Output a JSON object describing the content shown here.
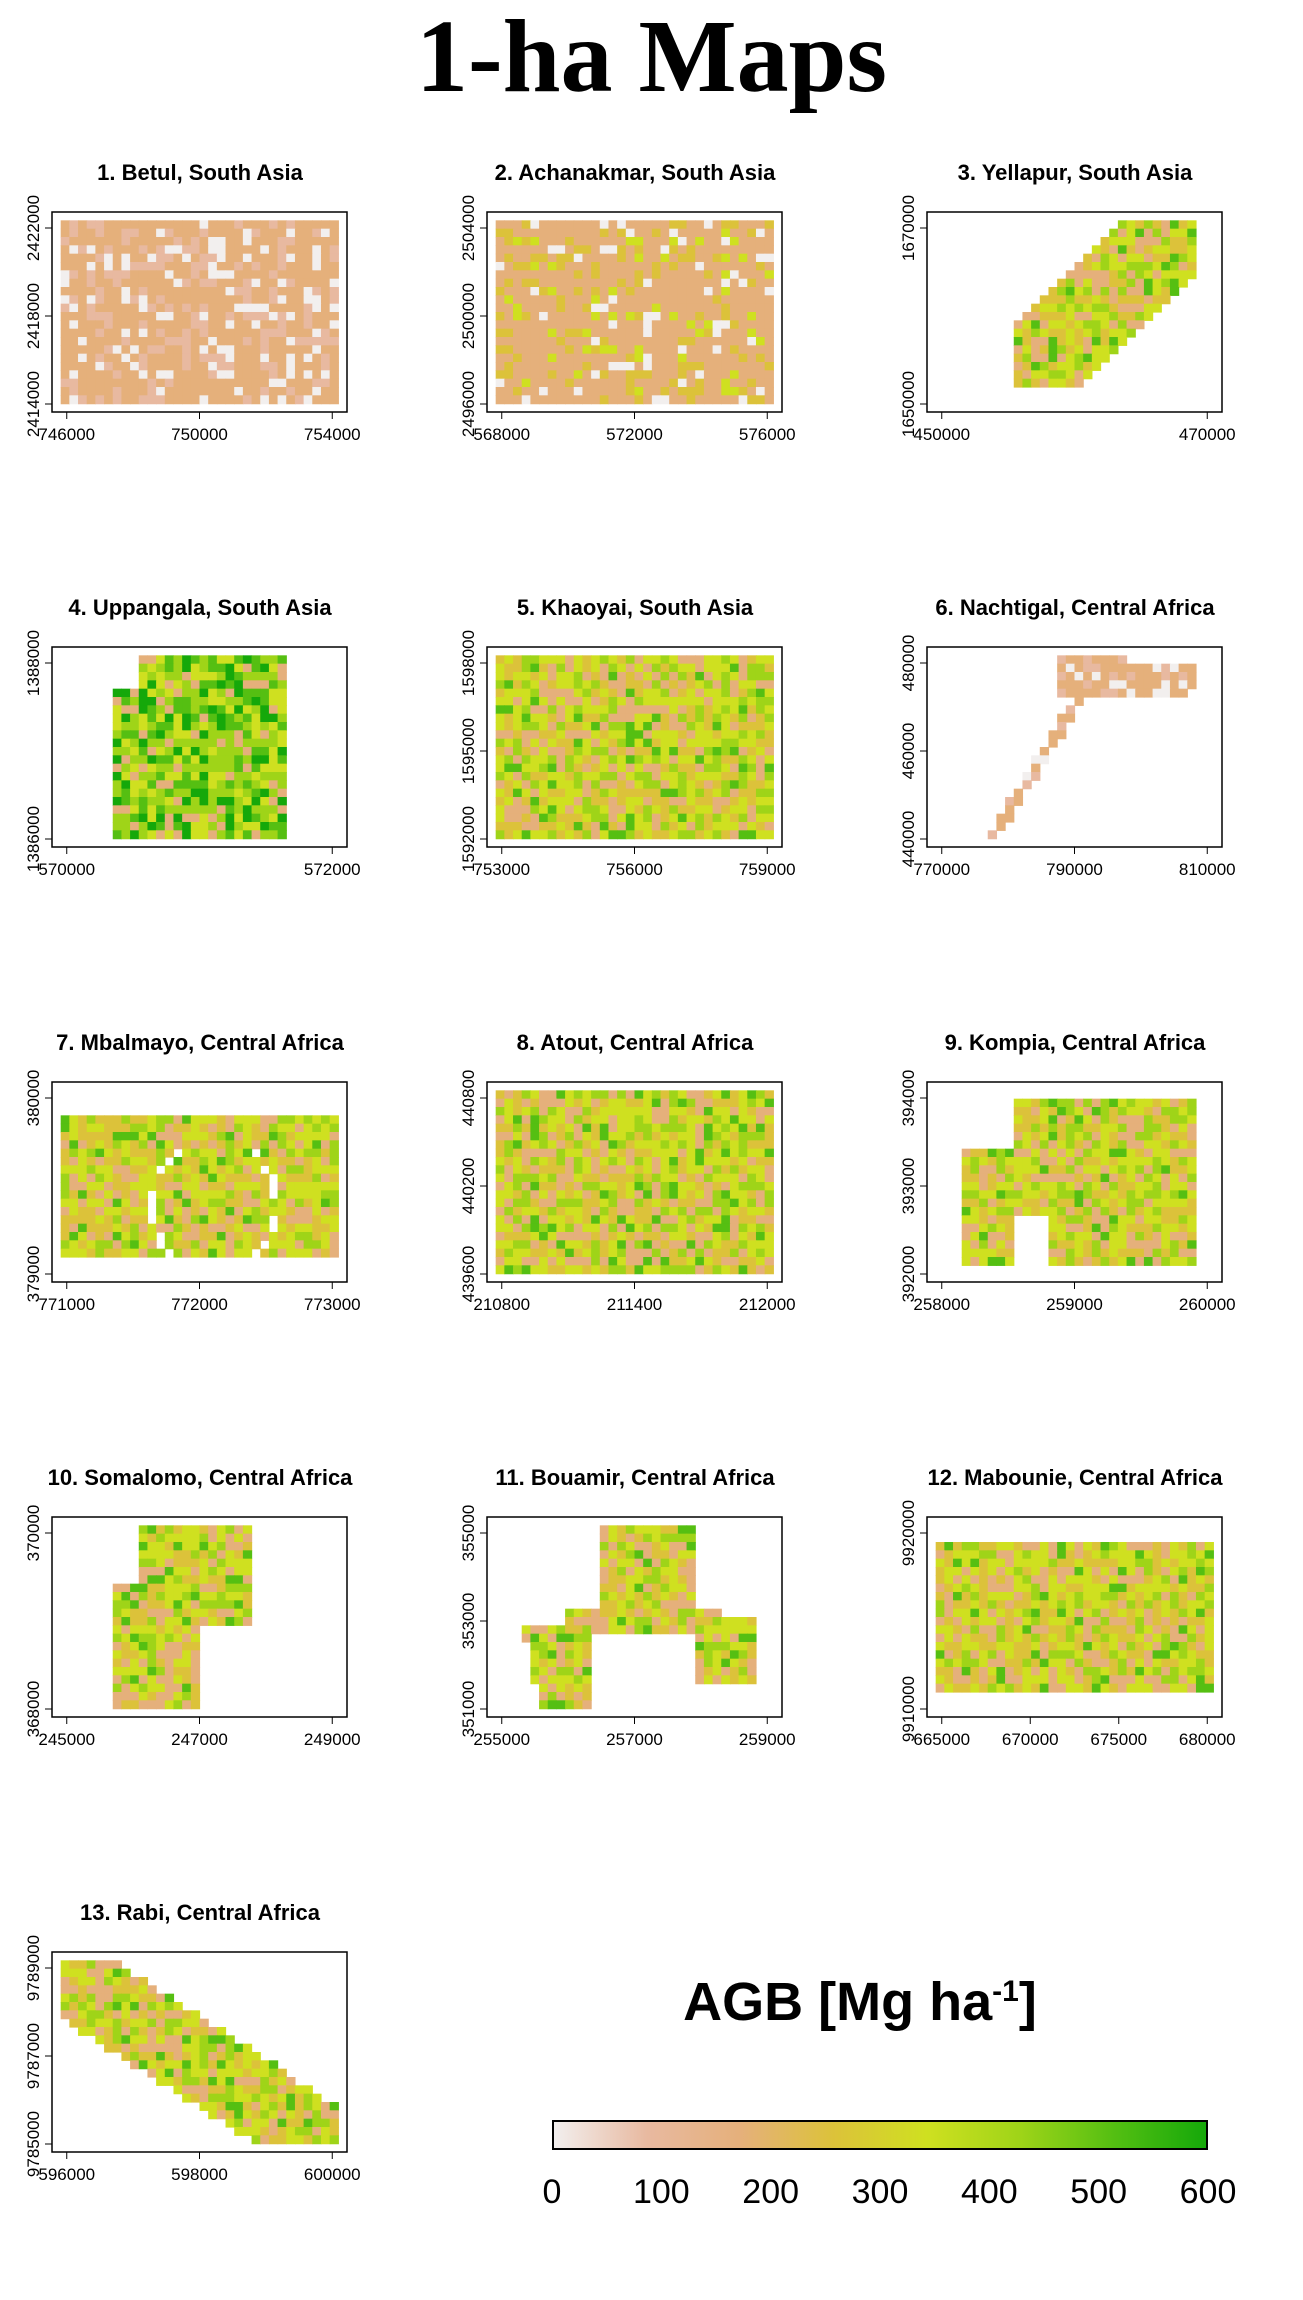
{
  "title": "1-ha Maps",
  "colors": {
    "ramp": [
      "#f2efee",
      "#e8b9a0",
      "#e5b07b",
      "#dcc23a",
      "#cfe020",
      "#9fd418",
      "#55bf12",
      "#15a80a"
    ],
    "axis": "#000000"
  },
  "panels": [
    {
      "title": "1. Betul, South Asia",
      "shape": "square",
      "palette": "low",
      "x_ticks": [
        "746000",
        "750000",
        "754000"
      ],
      "y_ticks": [
        "2414000",
        "2418000",
        "2422000"
      ]
    },
    {
      "title": "2. Achanakmar, South Asia",
      "shape": "square",
      "palette": "lowmid",
      "x_ticks": [
        "568000",
        "572000",
        "576000"
      ],
      "y_ticks": [
        "2496000",
        "2500000",
        "2504000"
      ]
    },
    {
      "title": "3. Yellapur, South Asia",
      "shape": "diagonal-strip",
      "palette": "mid",
      "x_ticks": [
        "450000",
        "470000"
      ],
      "y_ticks": [
        "1650000",
        "1670000"
      ]
    },
    {
      "title": "4. Uppangala, South Asia",
      "shape": "tall-rect",
      "palette": "high",
      "x_ticks": [
        "570000",
        "572000"
      ],
      "y_ticks": [
        "1386000",
        "1388000"
      ]
    },
    {
      "title": "5. Khaoyai, South Asia",
      "shape": "square",
      "palette": "mid",
      "x_ticks": [
        "753000",
        "756000",
        "759000"
      ],
      "y_ticks": [
        "1592000",
        "1595000",
        "1598000"
      ]
    },
    {
      "title": "6. Nachtigal, Central Africa",
      "shape": "road",
      "palette": "low",
      "x_ticks": [
        "770000",
        "790000",
        "810000"
      ],
      "y_ticks": [
        "440000",
        "460000",
        "480000"
      ]
    },
    {
      "title": "7. Mbalmayo, Central Africa",
      "shape": "ring-rect",
      "palette": "mid",
      "x_ticks": [
        "771000",
        "772000",
        "773000"
      ],
      "y_ticks": [
        "379000",
        "380000"
      ]
    },
    {
      "title": "8. Atout, Central Africa",
      "shape": "square",
      "palette": "mid",
      "x_ticks": [
        "210800",
        "211400",
        "212000"
      ],
      "y_ticks": [
        "439600",
        "440200",
        "440800"
      ]
    },
    {
      "title": "9. Kompia, Central Africa",
      "shape": "notched-rect",
      "palette": "mid",
      "x_ticks": [
        "258000",
        "259000",
        "260000"
      ],
      "y_ticks": [
        "392000",
        "393000",
        "394000"
      ]
    },
    {
      "title": "10. Somalomo, Central Africa",
      "shape": "irregular",
      "palette": "mid",
      "x_ticks": [
        "245000",
        "247000",
        "249000"
      ],
      "y_ticks": [
        "368000",
        "370000"
      ]
    },
    {
      "title": "11. Bouamir, Central Africa",
      "shape": "arch",
      "palette": "mid",
      "x_ticks": [
        "255000",
        "257000",
        "259000"
      ],
      "y_ticks": [
        "351000",
        "353000",
        "355000"
      ]
    },
    {
      "title": "12. Mabounie, Central Africa",
      "shape": "wide-rect",
      "palette": "mid",
      "x_ticks": [
        "665000",
        "670000",
        "675000",
        "680000"
      ],
      "y_ticks": [
        "9910000",
        "9920000"
      ]
    },
    {
      "title": "13. Rabi, Central Africa",
      "shape": "diagonal-band",
      "palette": "mid",
      "x_ticks": [
        "596000",
        "598000",
        "600000"
      ],
      "y_ticks": [
        "9785000",
        "9787000",
        "9789000"
      ]
    }
  ],
  "legend": {
    "title": "AGB [Mg ha",
    "title_sup": "-1",
    "title_end": "]",
    "labels": [
      "0",
      "100",
      "200",
      "300",
      "400",
      "500",
      "600"
    ],
    "range": [
      0,
      600
    ]
  }
}
